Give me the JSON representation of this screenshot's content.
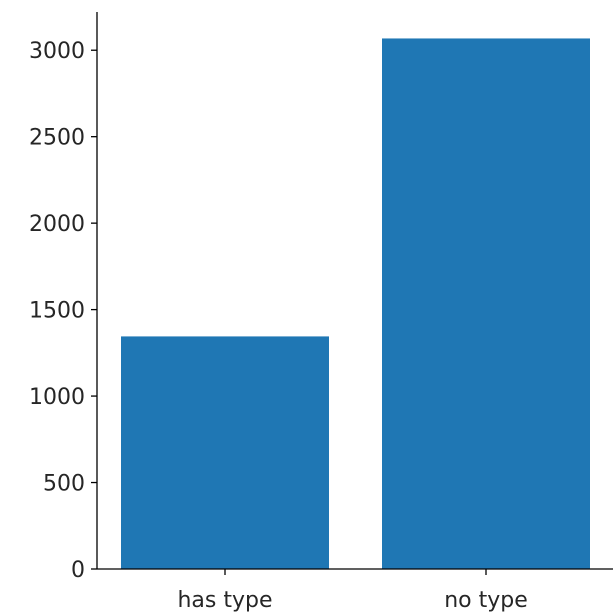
{
  "chart_data": {
    "type": "bar",
    "title": "",
    "xlabel": "",
    "ylabel": "",
    "categories": [
      "has type",
      "no type"
    ],
    "values": [
      1345,
      3068
    ],
    "ylim": [
      0,
      3221
    ],
    "yticks": [
      0,
      500,
      1000,
      1500,
      2000,
      2500,
      3000
    ],
    "ytick_labels": [
      "0",
      "500",
      "1000",
      "1500",
      "2000",
      "2500",
      "3000"
    ],
    "grid": false,
    "legend": "none",
    "bar_color": "#1f77b4"
  }
}
